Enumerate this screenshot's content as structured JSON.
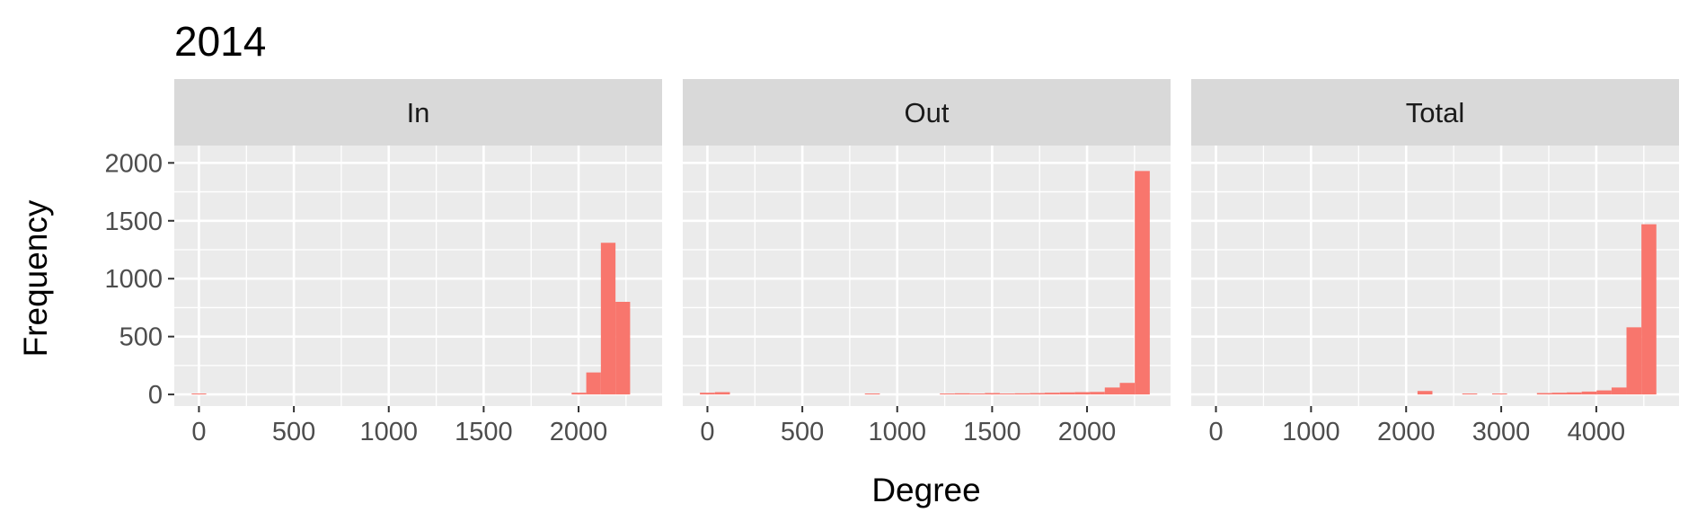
{
  "chart_data": {
    "type": "bar",
    "title": "2014",
    "xlabel": "Degree",
    "ylabel": "Frequency",
    "bar_color": "#F8766D",
    "panel_bg": "#EBEBEB",
    "strip_bg": "#D9D9D9",
    "grid_color": "#FFFFFF",
    "ylim": [
      -100,
      2150
    ],
    "y_ticks": [
      0,
      500,
      1000,
      1500,
      2000
    ],
    "y_tick_labels": [
      "0",
      "500",
      "1000",
      "1500",
      "2000"
    ],
    "panels": [
      {
        "name": "In",
        "xlim": [
          -130,
          2440
        ],
        "x_ticks": [
          0,
          500,
          1000,
          1500,
          2000
        ],
        "x_tick_labels": [
          "0",
          "500",
          "1000",
          "1500",
          "2000"
        ],
        "bin_width": 77,
        "bars": [
          {
            "x": 0,
            "y": 8
          },
          {
            "x": 2002,
            "y": 15
          },
          {
            "x": 2079,
            "y": 190
          },
          {
            "x": 2156,
            "y": 1310
          },
          {
            "x": 2233,
            "y": 800
          }
        ]
      },
      {
        "name": "Out",
        "xlim": [
          -130,
          2440
        ],
        "x_ticks": [
          0,
          500,
          1000,
          1500,
          2000
        ],
        "x_tick_labels": [
          "0",
          "500",
          "1000",
          "1500",
          "2000"
        ],
        "bin_width": 79,
        "bars": [
          {
            "x": 0,
            "y": 15
          },
          {
            "x": 79,
            "y": 20
          },
          {
            "x": 869,
            "y": 8
          },
          {
            "x": 1264,
            "y": 8
          },
          {
            "x": 1343,
            "y": 10
          },
          {
            "x": 1422,
            "y": 8
          },
          {
            "x": 1501,
            "y": 12
          },
          {
            "x": 1580,
            "y": 8
          },
          {
            "x": 1659,
            "y": 10
          },
          {
            "x": 1738,
            "y": 12
          },
          {
            "x": 1817,
            "y": 15
          },
          {
            "x": 1896,
            "y": 18
          },
          {
            "x": 1975,
            "y": 20
          },
          {
            "x": 2054,
            "y": 22
          },
          {
            "x": 2133,
            "y": 60
          },
          {
            "x": 2212,
            "y": 100
          },
          {
            "x": 2291,
            "y": 1930
          }
        ]
      },
      {
        "name": "Total",
        "xlim": [
          -260,
          4870
        ],
        "x_ticks": [
          0,
          1000,
          2000,
          3000,
          4000
        ],
        "x_tick_labels": [
          "0",
          "1000",
          "2000",
          "3000",
          "4000"
        ],
        "bin_width": 157,
        "bars": [
          {
            "x": 2198,
            "y": 30
          },
          {
            "x": 2669,
            "y": 8
          },
          {
            "x": 2983,
            "y": 8
          },
          {
            "x": 3454,
            "y": 12
          },
          {
            "x": 3611,
            "y": 15
          },
          {
            "x": 3768,
            "y": 18
          },
          {
            "x": 3925,
            "y": 25
          },
          {
            "x": 4082,
            "y": 35
          },
          {
            "x": 4239,
            "y": 60
          },
          {
            "x": 4396,
            "y": 580
          },
          {
            "x": 4553,
            "y": 1470
          }
        ]
      }
    ]
  }
}
